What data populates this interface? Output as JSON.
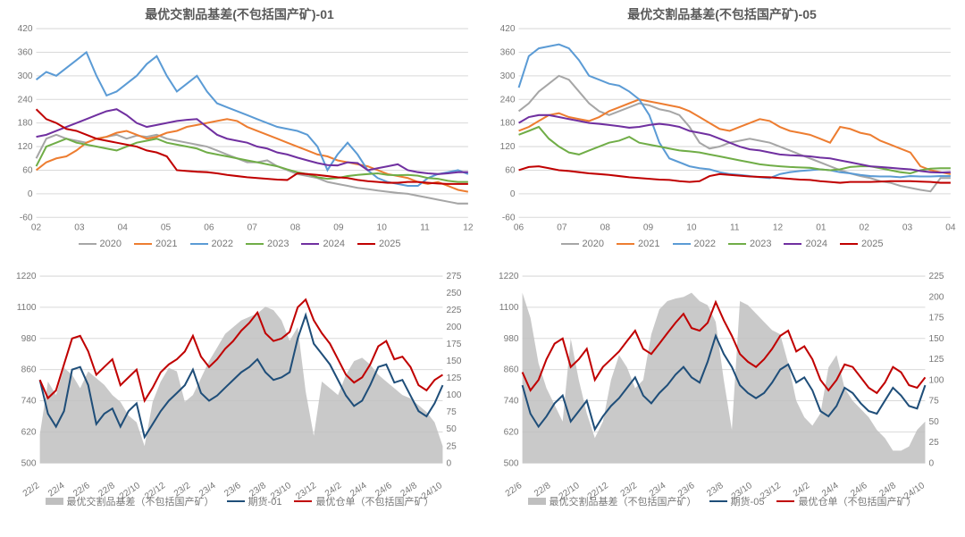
{
  "colors": {
    "y2020": "#a6a6a6",
    "y2021": "#ed7d31",
    "y2022": "#5b9bd5",
    "y2023": "#70ad47",
    "y2024": "#7030a0",
    "y2025": "#c00000",
    "area": "#bfbfbf",
    "blue": "#1f4e79",
    "red": "#c00000",
    "grid": "#d9d9d9",
    "axis": "#9c9c9c"
  },
  "top_left": {
    "title": "最优交割品基差(不包括国产矿)-01",
    "ylim": [
      -60,
      420
    ],
    "ytick_step": 60,
    "xlabels": [
      "02",
      "03",
      "04",
      "05",
      "06",
      "07",
      "08",
      "09",
      "10",
      "11",
      "12"
    ],
    "legend": [
      "2020",
      "2021",
      "2022",
      "2023",
      "2024",
      "2025"
    ],
    "series": {
      "2020": [
        90,
        140,
        150,
        140,
        135,
        130,
        140,
        145,
        150,
        140,
        148,
        145,
        150,
        140,
        135,
        130,
        125,
        120,
        110,
        100,
        90,
        80,
        80,
        85,
        70,
        60,
        50,
        45,
        40,
        30,
        25,
        20,
        15,
        12,
        8,
        5,
        2,
        0,
        -5,
        -10,
        -15,
        -20,
        -25,
        -25
      ],
      "2021": [
        60,
        80,
        90,
        95,
        110,
        130,
        140,
        145,
        155,
        160,
        150,
        140,
        145,
        155,
        160,
        170,
        175,
        180,
        185,
        190,
        185,
        170,
        160,
        150,
        140,
        130,
        120,
        110,
        100,
        95,
        85,
        80,
        75,
        70,
        60,
        50,
        45,
        40,
        30,
        25,
        30,
        20,
        10,
        5
      ],
      "2022": [
        290,
        310,
        300,
        320,
        340,
        360,
        300,
        250,
        260,
        280,
        300,
        330,
        350,
        300,
        260,
        280,
        300,
        260,
        230,
        220,
        210,
        200,
        190,
        180,
        170,
        165,
        160,
        150,
        120,
        60,
        100,
        130,
        100,
        60,
        40,
        30,
        25,
        20,
        20,
        40,
        50,
        55,
        60,
        50
      ],
      "2023": [
        70,
        120,
        130,
        140,
        130,
        125,
        120,
        115,
        110,
        120,
        130,
        135,
        140,
        130,
        125,
        120,
        115,
        105,
        100,
        95,
        90,
        85,
        80,
        75,
        70,
        62,
        55,
        50,
        42,
        38,
        40,
        45,
        48,
        50,
        52,
        48,
        47,
        48,
        46,
        40,
        38,
        33,
        30,
        30
      ],
      "2024": [
        145,
        150,
        160,
        170,
        180,
        190,
        200,
        210,
        215,
        200,
        180,
        170,
        175,
        180,
        185,
        188,
        190,
        170,
        150,
        140,
        135,
        130,
        120,
        115,
        105,
        100,
        92,
        85,
        78,
        73,
        72,
        80,
        78,
        60,
        65,
        70,
        75,
        60,
        55,
        52,
        50,
        52,
        55,
        55
      ],
      "2025": [
        215,
        190,
        180,
        165,
        160,
        150,
        140,
        135,
        130,
        125,
        120,
        110,
        105,
        95,
        60,
        58,
        56,
        55,
        52,
        48,
        45,
        42,
        40,
        38,
        36,
        35,
        52,
        50,
        48,
        45,
        42,
        40,
        35,
        32,
        30,
        28,
        28,
        30,
        30,
        28,
        26,
        25,
        25,
        25
      ]
    }
  },
  "top_right": {
    "title": "最优交割品基差(不包括国产矿)-05",
    "ylim": [
      -60,
      420
    ],
    "ytick_step": 60,
    "xlabels": [
      "06",
      "07",
      "08",
      "09",
      "10",
      "11",
      "12",
      "01",
      "02",
      "03",
      "04"
    ],
    "legend": [
      "2020",
      "2021",
      "2022",
      "2023",
      "2024",
      "2025"
    ],
    "series": {
      "2020": [
        210,
        230,
        260,
        280,
        300,
        290,
        260,
        230,
        210,
        200,
        210,
        220,
        230,
        225,
        215,
        210,
        200,
        170,
        130,
        115,
        120,
        130,
        135,
        140,
        135,
        130,
        120,
        110,
        100,
        90,
        80,
        70,
        60,
        52,
        45,
        40,
        32,
        28,
        20,
        15,
        10,
        6,
        40,
        40
      ],
      "2021": [
        160,
        170,
        185,
        200,
        205,
        195,
        190,
        185,
        195,
        210,
        220,
        230,
        240,
        235,
        230,
        225,
        220,
        210,
        195,
        180,
        165,
        160,
        170,
        180,
        190,
        185,
        170,
        160,
        155,
        150,
        140,
        130,
        170,
        165,
        155,
        150,
        135,
        125,
        115,
        105,
        70,
        60,
        55,
        50
      ],
      "2022": [
        270,
        350,
        370,
        375,
        380,
        370,
        340,
        300,
        290,
        280,
        275,
        260,
        240,
        200,
        130,
        90,
        80,
        70,
        65,
        62,
        55,
        50,
        48,
        45,
        42,
        40,
        50,
        55,
        58,
        60,
        62,
        60,
        55,
        52,
        48,
        45,
        44,
        44,
        42,
        45,
        44,
        44,
        45,
        45
      ],
      "2023": [
        150,
        160,
        170,
        140,
        120,
        105,
        100,
        110,
        120,
        130,
        135,
        145,
        130,
        125,
        120,
        115,
        110,
        108,
        105,
        100,
        95,
        90,
        85,
        80,
        75,
        72,
        70,
        68,
        67,
        66,
        62,
        60,
        62,
        68,
        70,
        70,
        65,
        60,
        55,
        52,
        60,
        64,
        65,
        65
      ],
      "2024": [
        180,
        195,
        200,
        200,
        195,
        190,
        185,
        180,
        178,
        175,
        172,
        168,
        170,
        175,
        178,
        175,
        170,
        160,
        155,
        150,
        140,
        130,
        120,
        113,
        110,
        105,
        100,
        98,
        97,
        95,
        92,
        90,
        85,
        80,
        75,
        70,
        68,
        66,
        64,
        62,
        58,
        55,
        54,
        55
      ],
      "2025": [
        60,
        68,
        70,
        65,
        60,
        58,
        55,
        52,
        50,
        48,
        45,
        42,
        40,
        38,
        36,
        35,
        32,
        30,
        32,
        45,
        50,
        48,
        46,
        44,
        43,
        42,
        40,
        38,
        36,
        35,
        32,
        30,
        28,
        30,
        30,
        30,
        31,
        32,
        32,
        32,
        31,
        30,
        28,
        28
      ]
    }
  },
  "bottom_left": {
    "yL": [
      500,
      1220
    ],
    "yL_step": 120,
    "yR": [
      0,
      275
    ],
    "yR_step": 25,
    "xlabels": [
      "22/2",
      "22/4",
      "22/6",
      "22/8",
      "22/10",
      "22/12",
      "23/2",
      "23/4",
      "23/6",
      "23/8",
      "23/10",
      "23/12",
      "24/2",
      "24/4",
      "24/6",
      "24/8",
      "24/10"
    ],
    "legend_area": "最优交割品基差（不包括国产矿）",
    "legend_blue": "期货-01",
    "legend_red": "最优仓单（不包括国产矿）",
    "area": [
      42,
      120,
      100,
      140,
      130,
      110,
      135,
      125,
      115,
      100,
      90,
      70,
      60,
      25,
      90,
      120,
      140,
      135,
      90,
      100,
      125,
      150,
      170,
      190,
      200,
      210,
      215,
      220,
      230,
      225,
      210,
      180,
      200,
      105,
      40,
      120,
      110,
      100,
      130,
      150,
      155,
      145,
      130,
      120,
      110,
      100,
      95,
      85,
      75,
      60,
      25
    ],
    "blue": [
      820,
      690,
      640,
      700,
      860,
      870,
      800,
      650,
      690,
      710,
      640,
      700,
      730,
      600,
      650,
      700,
      740,
      770,
      800,
      860,
      770,
      740,
      760,
      790,
      820,
      850,
      870,
      900,
      850,
      820,
      830,
      850,
      980,
      1070,
      960,
      920,
      880,
      820,
      760,
      720,
      740,
      800,
      870,
      880,
      810,
      820,
      760,
      700,
      680,
      730,
      800
    ],
    "red": [
      820,
      750,
      780,
      880,
      980,
      990,
      930,
      840,
      870,
      900,
      800,
      830,
      860,
      740,
      790,
      850,
      880,
      900,
      930,
      990,
      910,
      870,
      900,
      940,
      970,
      1010,
      1040,
      1080,
      1000,
      970,
      980,
      1005,
      1100,
      1130,
      1050,
      1000,
      960,
      900,
      840,
      810,
      830,
      880,
      950,
      970,
      900,
      910,
      870,
      800,
      780,
      820,
      840
    ]
  },
  "bottom_right": {
    "yL": [
      500,
      1220
    ],
    "yL_step": 120,
    "yR": [
      0,
      225
    ],
    "yR_step": 25,
    "xlabels": [
      "22/6",
      "22/8",
      "22/10",
      "22/12",
      "23/2",
      "23/4",
      "23/6",
      "23/8",
      "23/10",
      "23/12",
      "24/2",
      "24/4",
      "24/6",
      "24/8",
      "24/10"
    ],
    "legend_area": "最优交割品基差（不包括国产矿）",
    "legend_blue": "期货-05",
    "legend_red": "最优仓单（不包括国产矿）",
    "area": [
      205,
      175,
      120,
      90,
      70,
      50,
      150,
      100,
      60,
      30,
      50,
      100,
      130,
      115,
      90,
      100,
      155,
      185,
      195,
      198,
      200,
      205,
      195,
      190,
      170,
      100,
      40,
      195,
      190,
      180,
      170,
      160,
      155,
      120,
      75,
      55,
      45,
      60,
      115,
      130,
      90,
      75,
      65,
      55,
      40,
      30,
      15,
      15,
      20,
      40,
      50
    ],
    "blue": [
      800,
      690,
      640,
      680,
      730,
      760,
      660,
      700,
      740,
      630,
      680,
      720,
      750,
      790,
      830,
      760,
      730,
      770,
      800,
      840,
      870,
      830,
      810,
      890,
      990,
      920,
      870,
      800,
      770,
      750,
      770,
      810,
      860,
      880,
      810,
      830,
      780,
      700,
      680,
      720,
      790,
      770,
      730,
      700,
      690,
      740,
      790,
      760,
      720,
      710,
      800
    ],
    "red": [
      850,
      780,
      820,
      900,
      960,
      980,
      870,
      900,
      940,
      820,
      870,
      900,
      930,
      970,
      1010,
      940,
      920,
      960,
      1000,
      1040,
      1075,
      1020,
      1010,
      1040,
      1120,
      1050,
      990,
      920,
      890,
      870,
      900,
      940,
      990,
      1010,
      930,
      950,
      900,
      820,
      780,
      820,
      880,
      870,
      830,
      790,
      770,
      810,
      870,
      850,
      800,
      790,
      830
    ]
  }
}
